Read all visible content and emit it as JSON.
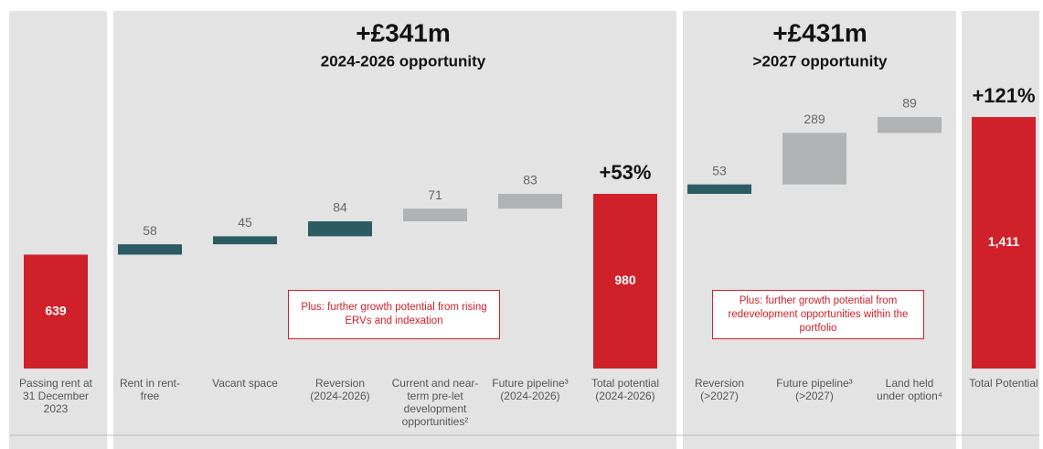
{
  "chart_data": {
    "type": "waterfall",
    "categories": [
      "Passing rent at 31 December 2023",
      "Rent in rent-free",
      "Vacant space",
      "Reversion (2024-2026)",
      "Current and near-term pre-let development opportunities²",
      "Future pipeline³ (2024-2026)",
      "Total potential (2024-2026)",
      "Reversion (>2027)",
      "Future pipeline³ (>2027)",
      "Land held under option⁴",
      "Total Potential"
    ],
    "values": [
      639,
      58,
      45,
      84,
      71,
      83,
      980,
      53,
      289,
      89,
      1411
    ],
    "value_labels": [
      "639",
      "58",
      "45",
      "84",
      "71",
      "83",
      "980",
      "53",
      "289",
      "89",
      "1,411"
    ],
    "measure": [
      "total",
      "relative",
      "relative",
      "relative",
      "relative",
      "relative",
      "total",
      "relative",
      "relative",
      "relative",
      "total"
    ],
    "colors": [
      "#d0202a",
      "#2b5c63",
      "#2b5c63",
      "#2b5c63",
      "#b0b2b3",
      "#b0b2b3",
      "#d0202a",
      "#2b5c63",
      "#b0b2b3",
      "#b0b2b3",
      "#d0202a"
    ],
    "panels": [
      {
        "headline": "+£341m",
        "subtitle": "2024-2026 opportunity"
      },
      {
        "headline": "+£431m",
        "subtitle": ">2027 opportunity"
      }
    ],
    "total_annotations": [
      {
        "index": 6,
        "text": "+53%"
      },
      {
        "index": 10,
        "text": "+121%"
      }
    ],
    "notes": [
      "Plus: further growth potential from rising ERVs and indexation",
      "Plus: further growth potential from redevelopment opportunities within the portfolio"
    ]
  }
}
